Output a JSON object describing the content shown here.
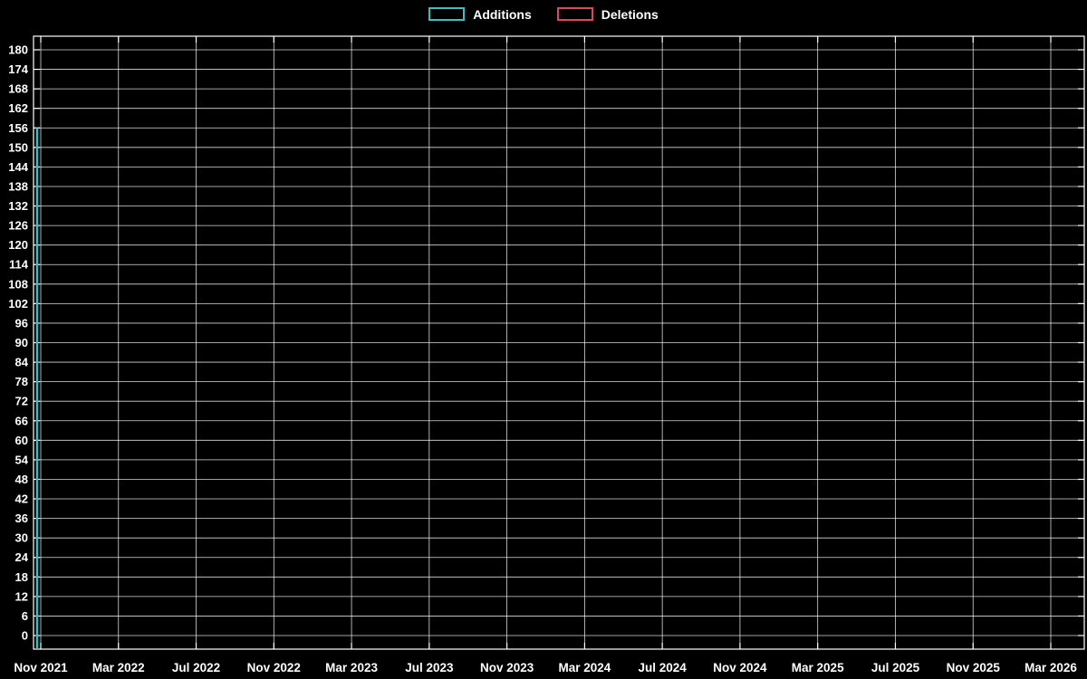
{
  "chart_data": {
    "type": "bar",
    "title": "",
    "xlabel": "",
    "ylabel": "",
    "legend": [
      {
        "label": "Additions",
        "color": "#3dbdbd"
      },
      {
        "label": "Deletions",
        "color": "#e0465a"
      }
    ],
    "legend_position": "top-center",
    "grid": true,
    "background": "#000000",
    "text_color": "#ffffff",
    "grid_color": "#ffffff",
    "x_ticks": [
      "Nov 2021",
      "Mar 2022",
      "Jul 2022",
      "Nov 2022",
      "Mar 2023",
      "Jul 2023",
      "Nov 2023",
      "Mar 2024",
      "Jul 2024",
      "Nov 2024",
      "Mar 2025",
      "Jul 2025",
      "Nov 2025",
      "Mar 2026"
    ],
    "y_ticks": [
      0,
      6,
      12,
      18,
      24,
      30,
      36,
      42,
      48,
      54,
      60,
      66,
      72,
      78,
      84,
      90,
      96,
      102,
      108,
      114,
      120,
      126,
      132,
      138,
      144,
      150,
      156,
      162,
      168,
      174,
      180
    ],
    "ylim": [
      0,
      184
    ],
    "series": [
      {
        "name": "Additions",
        "color": "#3dbdbd",
        "data": [
          {
            "x": "Nov 2021",
            "y": 156
          }
        ]
      },
      {
        "name": "Deletions",
        "color": "#e0465a",
        "data": [
          {
            "x": "Nov 2021",
            "y": 0
          }
        ]
      }
    ]
  }
}
